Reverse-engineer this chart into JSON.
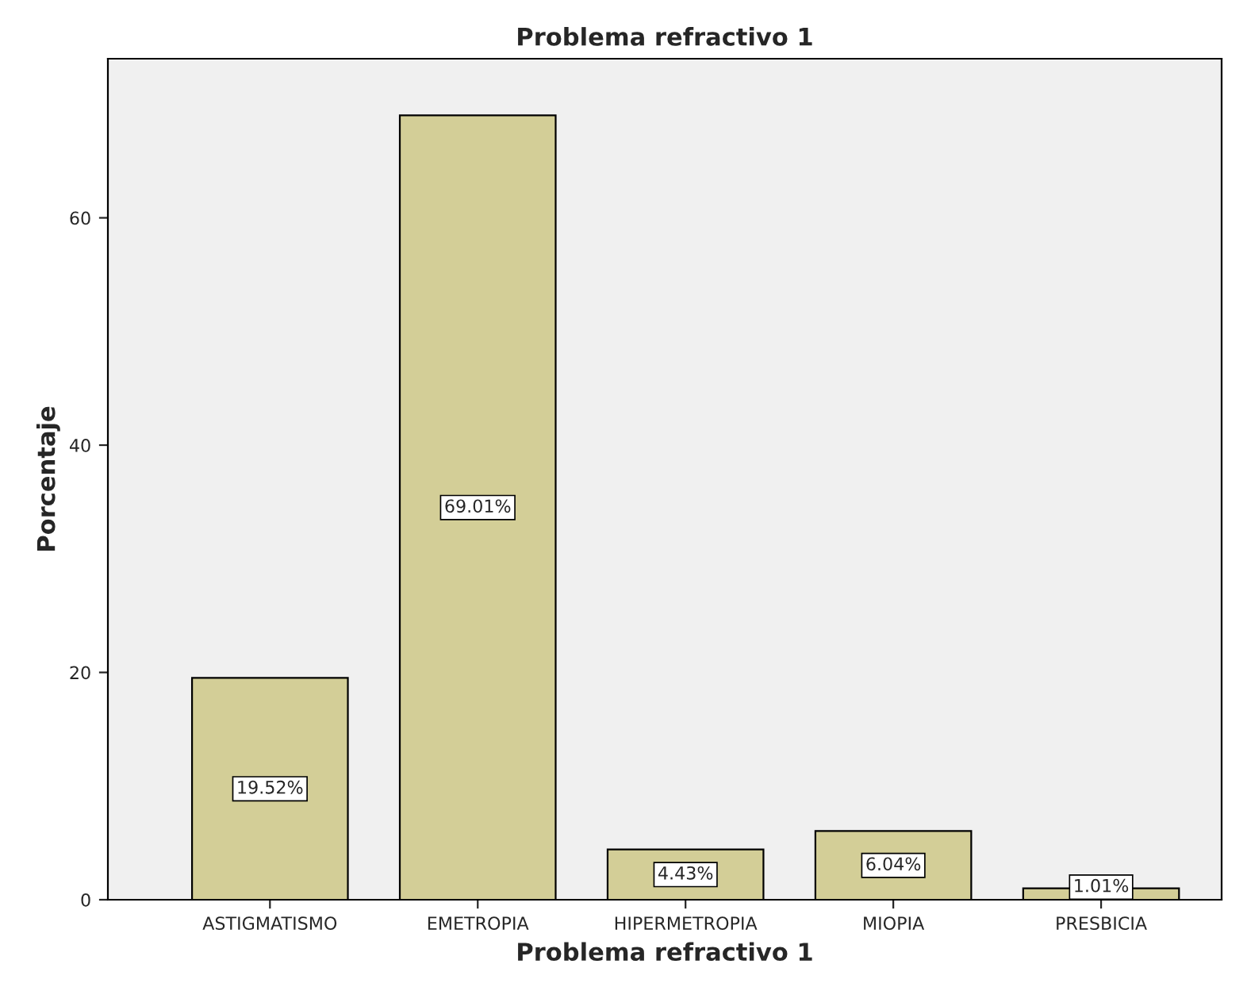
{
  "chart_data": {
    "type": "bar",
    "title": "Problema refractivo 1",
    "xlabel": "Problema refractivo 1",
    "ylabel": "Porcentaje",
    "categories": [
      "ASTIGMATISMO",
      "EMETROPIA",
      "HIPERMETROPIA",
      "MIOPIA",
      "PRESBICIA"
    ],
    "values": [
      19.52,
      69.01,
      4.43,
      6.04,
      1.01
    ],
    "value_labels": [
      "19.52%",
      "69.01%",
      "4.43%",
      "6.04%",
      "1.01%"
    ],
    "color": "#d3ce97",
    "ylim": [
      0,
      74
    ],
    "yticks": [
      0,
      20,
      40,
      60
    ],
    "grid": false,
    "legend": false
  }
}
